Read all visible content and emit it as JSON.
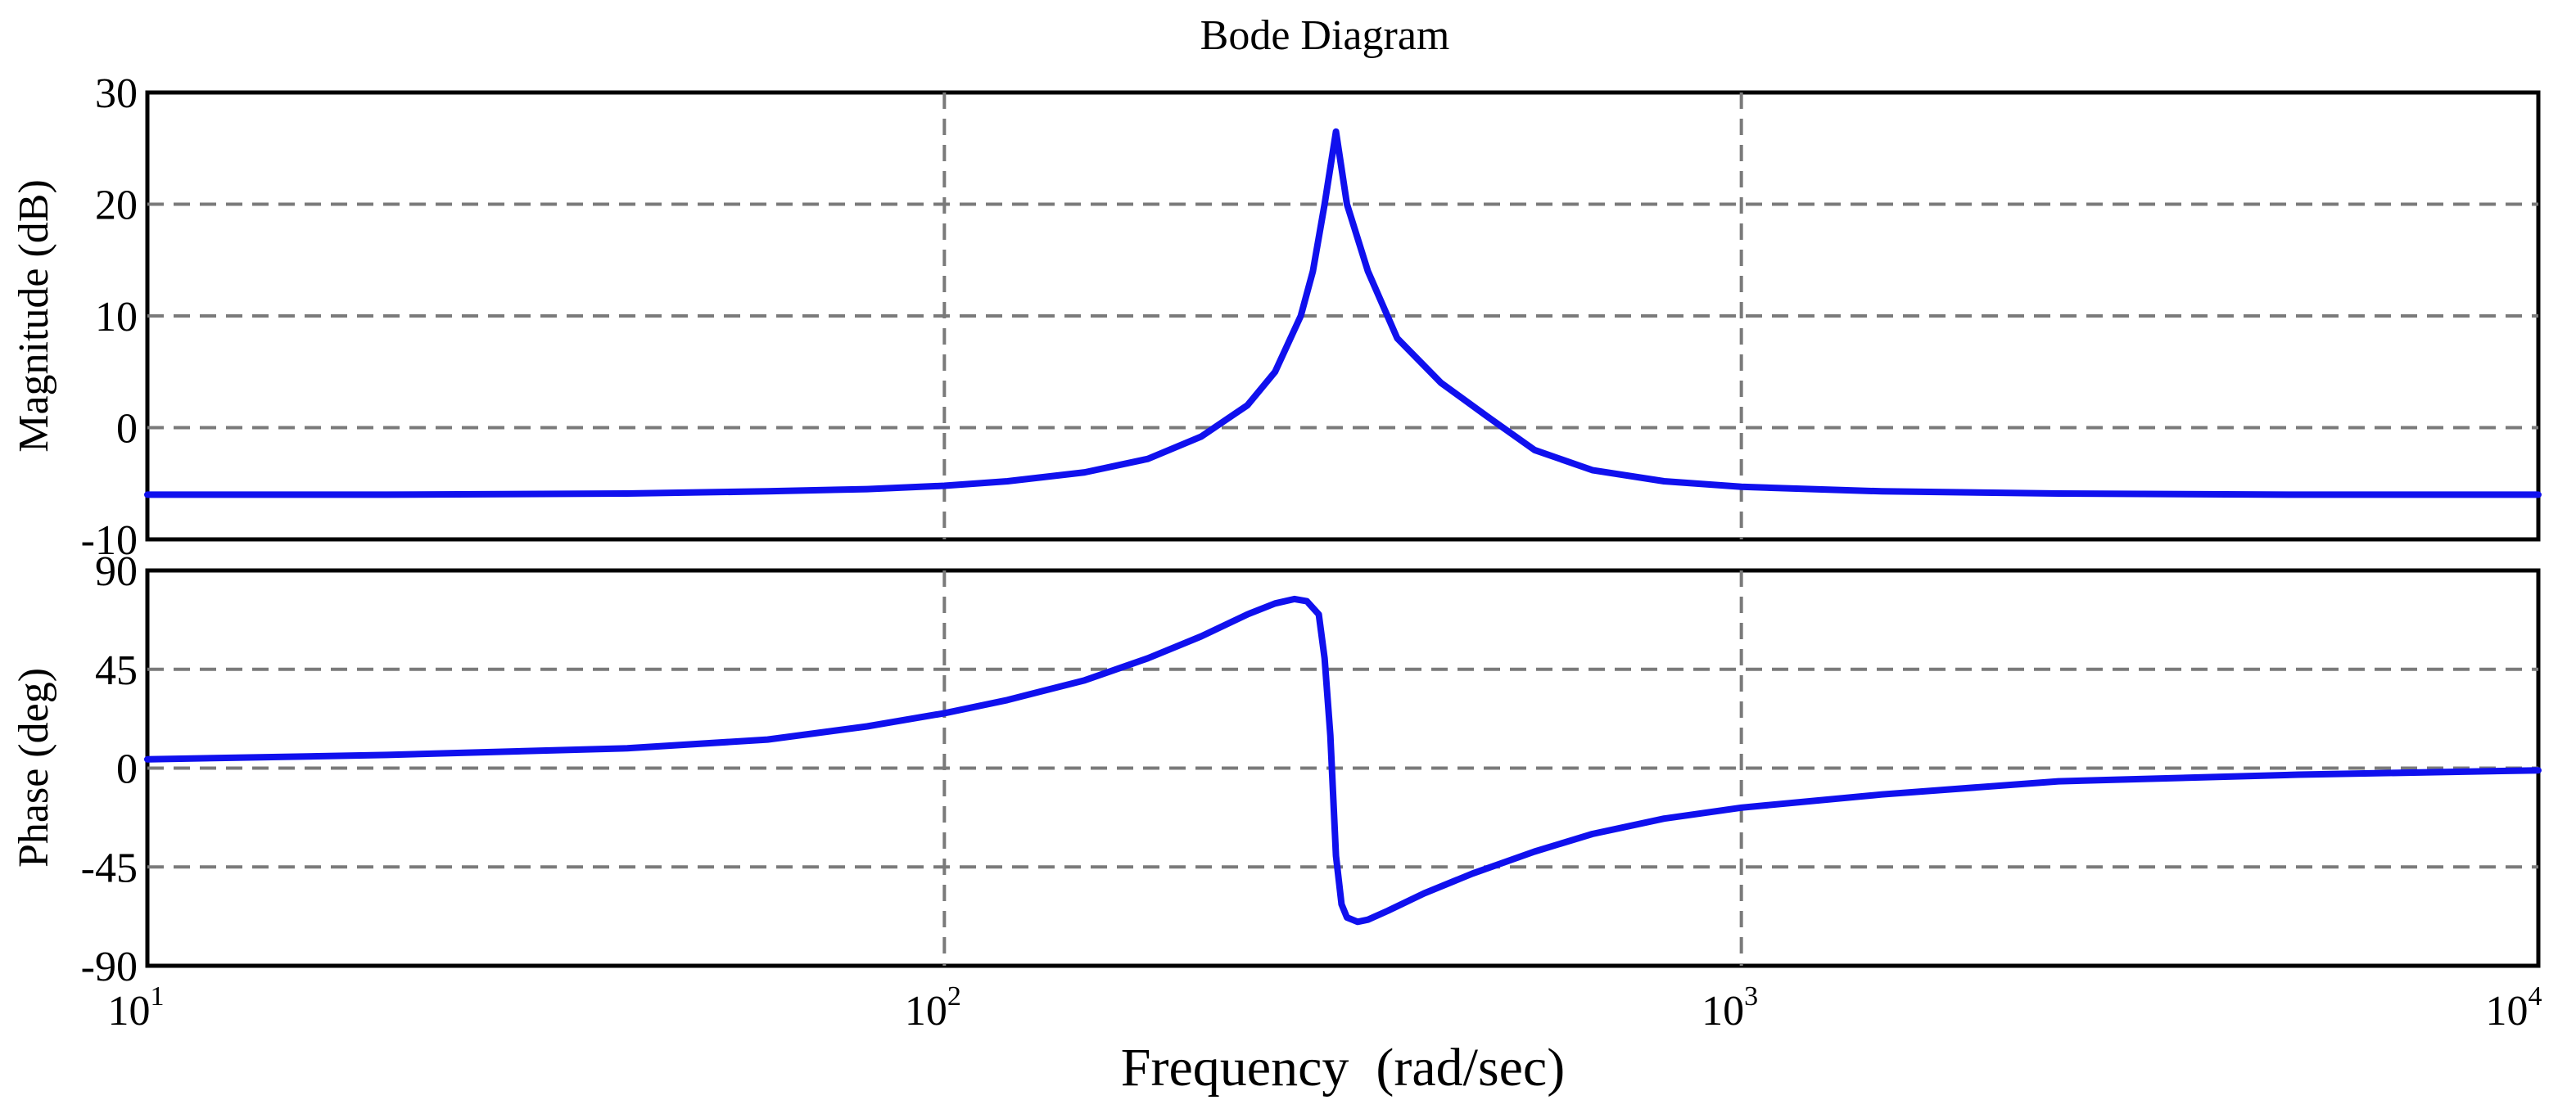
{
  "chart_data": {
    "type": "line",
    "title": "Bode Diagram",
    "xlabel": "Frequency  (rad/sec)",
    "xscale": "log",
    "xlim": [
      10,
      10000
    ],
    "x_ticks": [
      {
        "value": 10,
        "base": "10",
        "exp": "1"
      },
      {
        "value": 100,
        "base": "10",
        "exp": "2"
      },
      {
        "value": 1000,
        "base": "10",
        "exp": "3"
      },
      {
        "value": 10000,
        "base": "10",
        "exp": "4"
      }
    ],
    "grid": true,
    "line_color": "#1010ee",
    "panels": [
      {
        "id": "magnitude",
        "ylabel": "Magnitude (dB)",
        "ylim": [
          -10,
          30
        ],
        "yticks": [
          -10,
          0,
          10,
          20,
          30
        ],
        "ytick_labels": [
          "-10",
          "0",
          "10",
          "20",
          "30"
        ],
        "series": [
          {
            "x": [
              10,
              20,
              40,
              60,
              80,
              100,
              120,
              150,
              180,
              210,
              240,
              260,
              280,
              290,
              300,
              310,
              320,
              340,
              370,
              420,
              480,
              550,
              650,
              800,
              1000,
              1500,
              2500,
              5000,
              10000
            ],
            "y": [
              -6,
              -6,
              -5.9,
              -5.7,
              -5.5,
              -5.2,
              -4.8,
              -4,
              -2.8,
              -0.8,
              2,
              5,
              10,
              14,
              20,
              26.5,
              20,
              14,
              8,
              4,
              1,
              -2,
              -3.8,
              -4.8,
              -5.3,
              -5.7,
              -5.9,
              -6,
              -6
            ]
          }
        ]
      },
      {
        "id": "phase",
        "ylabel": "Phase (deg)",
        "ylim": [
          -90,
          90
        ],
        "yticks": [
          -90,
          -45,
          0,
          45,
          90
        ],
        "ytick_labels": [
          "-90",
          "-45",
          "0",
          "45",
          "90"
        ],
        "series": [
          {
            "x": [
              10,
              20,
              40,
              60,
              80,
              100,
              120,
              150,
              180,
              210,
              240,
              260,
              275,
              285,
              295,
              300,
              305,
              310,
              315,
              320,
              330,
              340,
              360,
              400,
              460,
              550,
              650,
              800,
              1000,
              1500,
              2500,
              5000,
              10000
            ],
            "y": [
              4,
              6,
              9,
              13,
              19,
              25,
              31,
              40,
              50,
              60,
              70,
              75,
              77,
              76,
              70,
              50,
              15,
              -40,
              -62,
              -68,
              -70,
              -69,
              -65,
              -57,
              -48,
              -38,
              -30,
              -23,
              -18,
              -12,
              -6,
              -3,
              -1
            ]
          }
        ]
      }
    ]
  }
}
